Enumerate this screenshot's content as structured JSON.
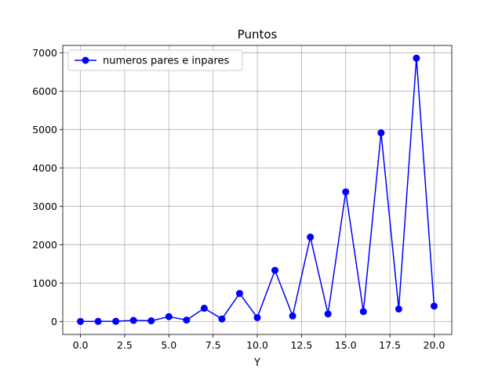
{
  "chart_data": {
    "type": "line",
    "title": "Puntos",
    "xlabel": "Y",
    "ylabel": "",
    "xlim": [
      -1.0,
      21.0
    ],
    "ylim": [
      -340,
      7190
    ],
    "xticks": [
      0.0,
      2.5,
      5.0,
      7.5,
      10.0,
      12.5,
      15.0,
      17.5,
      20.0
    ],
    "xtick_labels": [
      "0.0",
      "2.5",
      "5.0",
      "7.5",
      "10.0",
      "12.5",
      "15.0",
      "17.5",
      "20.0"
    ],
    "yticks": [
      0,
      1000,
      2000,
      3000,
      4000,
      5000,
      6000,
      7000
    ],
    "ytick_labels": [
      "0",
      "1000",
      "2000",
      "3000",
      "4000",
      "5000",
      "6000",
      "7000"
    ],
    "grid": true,
    "legend_position": "top-left",
    "series": [
      {
        "name": "numeros pares e inpares",
        "color": "#0000ff",
        "marker": "circle",
        "x": [
          0,
          1,
          2,
          3,
          4,
          5,
          6,
          7,
          8,
          9,
          10,
          11,
          12,
          13,
          14,
          15,
          16,
          17,
          18,
          19,
          20
        ],
        "y": [
          0,
          1,
          4,
          27,
          16,
          125,
          36,
          343,
          64,
          729,
          100,
          1331,
          144,
          2197,
          196,
          3375,
          256,
          4913,
          324,
          6859,
          400
        ]
      }
    ]
  }
}
